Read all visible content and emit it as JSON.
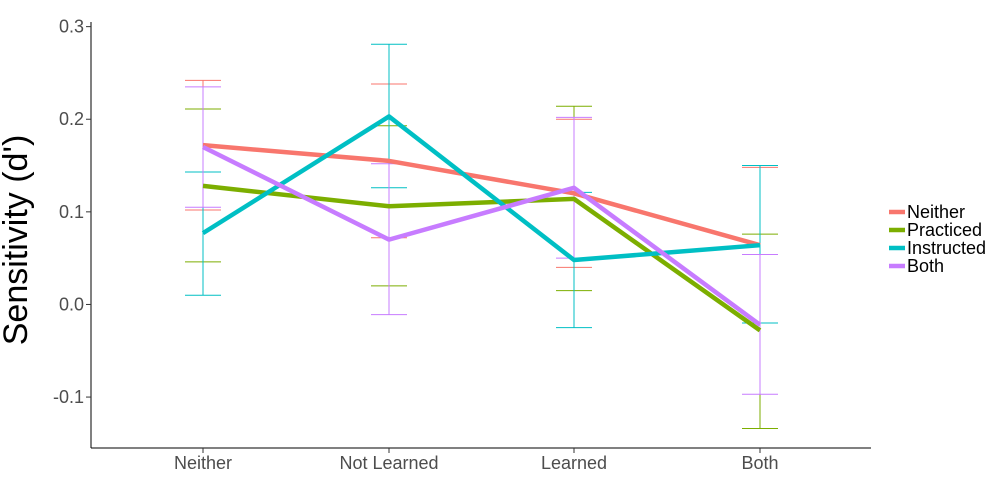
{
  "chart_data": {
    "type": "line",
    "title": "",
    "xlabel": "",
    "ylabel": "Sensitivity (d')",
    "categories": [
      "Neither",
      "Not Learned",
      "Learned",
      "Both"
    ],
    "ylim": [
      -0.155,
      0.305
    ],
    "yticks": [
      -0.1,
      0.0,
      0.1,
      0.2,
      0.3
    ],
    "ytick_labels": [
      "-0.1",
      "0.0",
      "0.1",
      "0.2",
      "0.3"
    ],
    "grid": false,
    "legend_position": "right",
    "error_bars": true,
    "series": [
      {
        "name": "Neither",
        "color": "#F8766D",
        "values": [
          0.172,
          0.155,
          0.12,
          0.064
        ],
        "lower": [
          0.102,
          0.072,
          0.04,
          -0.02
        ],
        "upper": [
          0.242,
          0.238,
          0.2,
          0.148
        ]
      },
      {
        "name": "Practiced",
        "color": "#7CAE00",
        "values": [
          0.128,
          0.106,
          0.114,
          -0.028
        ],
        "lower": [
          0.046,
          0.02,
          0.015,
          -0.134
        ],
        "upper": [
          0.211,
          0.193,
          0.214,
          0.076
        ]
      },
      {
        "name": "Instructed",
        "color": "#00BFC4",
        "values": [
          0.077,
          0.203,
          0.048,
          0.064
        ],
        "lower": [
          0.01,
          0.126,
          -0.025,
          -0.02
        ],
        "upper": [
          0.143,
          0.281,
          0.121,
          0.15
        ]
      },
      {
        "name": "Both",
        "color": "#C77CFF",
        "values": [
          0.17,
          0.07,
          0.126,
          -0.022
        ],
        "lower": [
          0.105,
          -0.011,
          0.05,
          -0.097
        ],
        "upper": [
          0.235,
          0.152,
          0.202,
          0.054
        ]
      }
    ]
  }
}
